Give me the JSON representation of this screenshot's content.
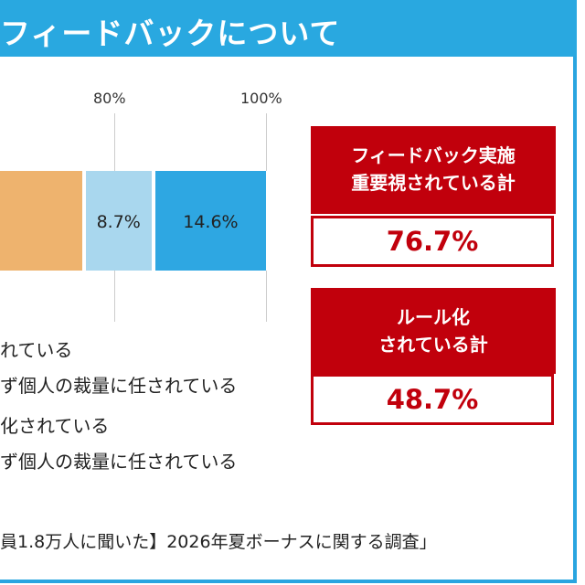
{
  "header": {
    "title": "フィードバックについて"
  },
  "chart_data": {
    "type": "bar",
    "orientation": "horizontal-stacked",
    "x_ticks": [
      "80%",
      "100%"
    ],
    "segments": [
      {
        "value": null,
        "label": "",
        "color": "#eeb36e"
      },
      {
        "value": 8.7,
        "label": "8.7%",
        "color": "#a9d7ee"
      },
      {
        "value": 14.6,
        "label": "14.6%",
        "color": "#2ea7e2"
      }
    ],
    "legend": [
      "れている",
      "ず個人の裁量に任されている",
      "化されている",
      "ず個人の裁量に任されている"
    ]
  },
  "callouts": [
    {
      "heading_line1": "フィードバック実施",
      "heading_line2": "重要視されている計",
      "value": "76.7%"
    },
    {
      "heading_line1": "ルール化",
      "heading_line2": "されている計",
      "value": "48.7%"
    }
  ],
  "footer": {
    "source": "員1.8万人に聞いた】2026年夏ボーナスに関する調査」"
  },
  "colors": {
    "brand_blue": "#29a8e0",
    "accent_red": "#c1000c"
  }
}
